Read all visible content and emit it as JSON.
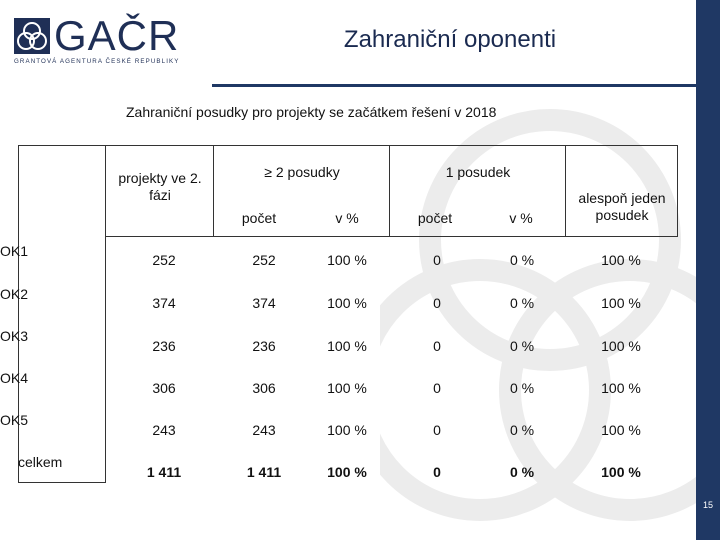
{
  "logo": {
    "name": "GAČR",
    "subtitle": "GRANTOVÁ AGENTURA ČESKÉ REPUBLIKY"
  },
  "slide_title": "Zahraniční oponenti",
  "subtitle": "Zahraniční posudky pro projekty se začátkem řešení v 2018",
  "table": {
    "headers": {
      "projects": "projekty ve 2. fázi",
      "group_2": "≥ 2  posudky",
      "group_1": "1 posudek",
      "count": "počet",
      "pct": "v %",
      "at_least_one": "alespoň jeden posudek"
    },
    "rows": [
      {
        "label": "OK1",
        "projects": "252",
        "c2": "252",
        "p2": "100 %",
        "c1": "0",
        "p1": "0 %",
        "any": "100 %"
      },
      {
        "label": "OK2",
        "projects": "374",
        "c2": "374",
        "p2": "100 %",
        "c1": "0",
        "p1": "0 %",
        "any": "100 %"
      },
      {
        "label": "OK3",
        "projects": "236",
        "c2": "236",
        "p2": "100 %",
        "c1": "0",
        "p1": "0 %",
        "any": "100 %"
      },
      {
        "label": "OK4",
        "projects": "306",
        "c2": "306",
        "p2": "100 %",
        "c1": "0",
        "p1": "0 %",
        "any": "100 %"
      },
      {
        "label": "OK5",
        "projects": "243",
        "c2": "243",
        "p2": "100 %",
        "c1": "0",
        "p1": "0 %",
        "any": "100 %"
      },
      {
        "label": "celkem",
        "projects": "1 411",
        "c2": "1 411",
        "p2": "100 %",
        "c1": "0",
        "p1": "0 %",
        "any": "100 %"
      }
    ]
  },
  "page_number": "15",
  "colors": {
    "navy": "#1f3864",
    "logo": "#1f2f56"
  }
}
